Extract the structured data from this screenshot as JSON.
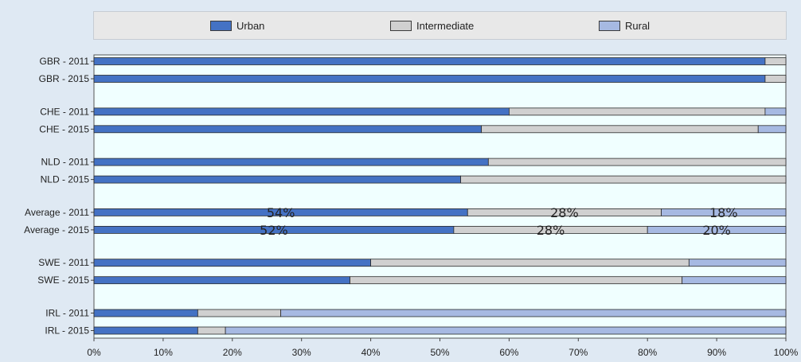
{
  "chart_data": {
    "type": "bar",
    "orientation": "horizontal",
    "stacked": true,
    "categories": [
      "GBR - 2011",
      "GBR - 2015",
      "CHE - 2011",
      "CHE - 2015",
      "NLD - 2011",
      "NLD - 2015",
      "Average - 2011",
      "Average - 2015",
      "SWE - 2011",
      "SWE - 2015",
      "IRL - 2011",
      "IRL - 2015"
    ],
    "series": [
      {
        "name": "Urban",
        "color": "#4472c4",
        "values": [
          97,
          97,
          60,
          56,
          57,
          53,
          54,
          52,
          40,
          37,
          15,
          15
        ]
      },
      {
        "name": "Intermediate",
        "color": "#d0d0d0",
        "values": [
          3,
          3,
          37,
          40,
          43,
          47,
          28,
          28,
          46,
          48,
          12,
          4
        ]
      },
      {
        "name": "Rural",
        "color": "#a6b9e2",
        "values": [
          0,
          0,
          3,
          4,
          0,
          0,
          18,
          20,
          14,
          15,
          73,
          81
        ]
      }
    ],
    "data_labels": {
      "Average - 2011": [
        "54%",
        "28%",
        "18%"
      ],
      "Average - 2015": [
        "52%",
        "28%",
        "20%"
      ]
    },
    "xlim": [
      0,
      100
    ],
    "x_ticks": [
      "0%",
      "10%",
      "20%",
      "30%",
      "40%",
      "50%",
      "60%",
      "70%",
      "80%",
      "90%",
      "100%"
    ],
    "legend_position": "top",
    "plot_background": "#f0ffff"
  }
}
